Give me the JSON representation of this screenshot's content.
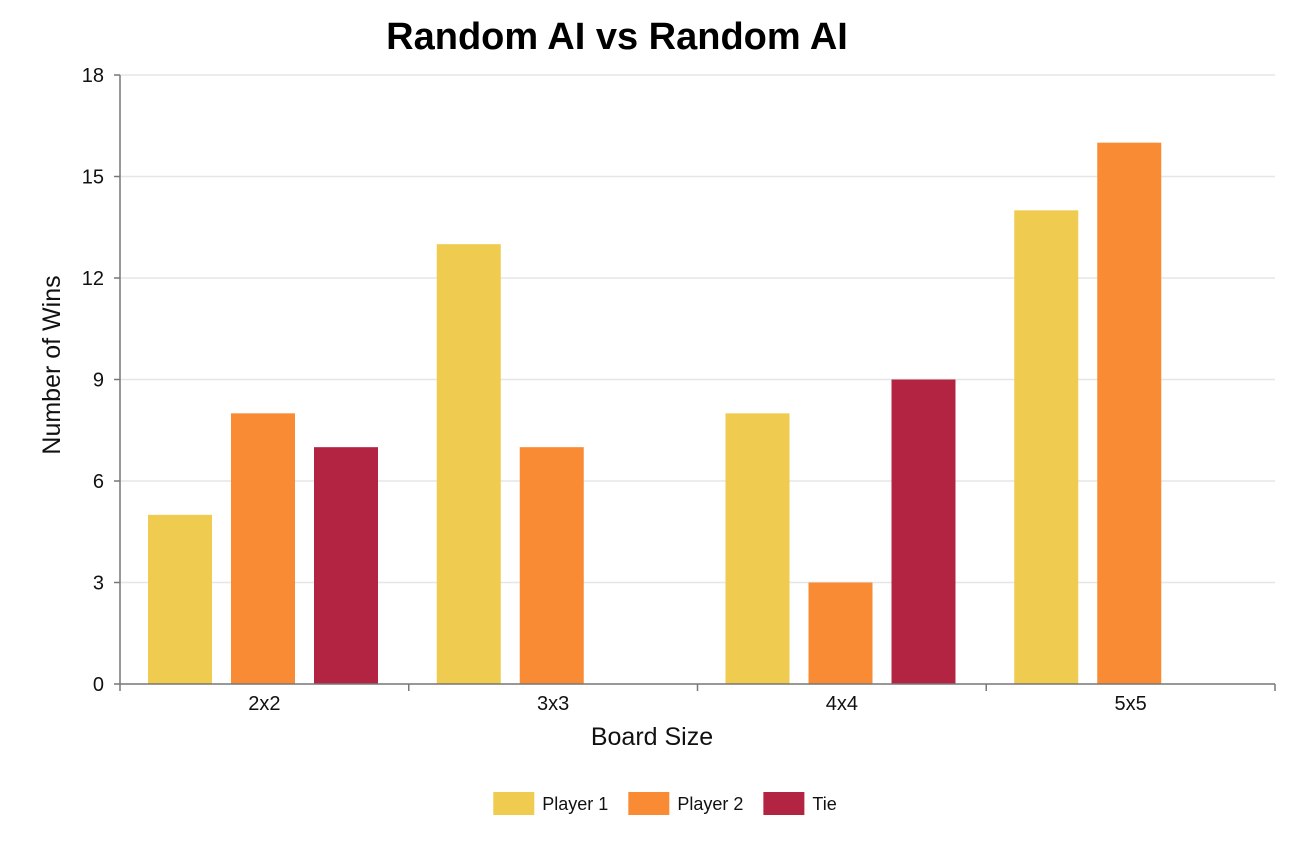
{
  "chart_data": {
    "type": "bar",
    "title": "Random AI vs Random AI",
    "xlabel": "Board Size",
    "ylabel": "Number of Wins",
    "categories": [
      "2x2",
      "3x3",
      "4x4",
      "5x5"
    ],
    "series": [
      {
        "name": "Player 1",
        "color": "#EFCB4F",
        "values": [
          5,
          13,
          8,
          14
        ]
      },
      {
        "name": "Player 2",
        "color": "#F98B34",
        "values": [
          8,
          7,
          3,
          16
        ]
      },
      {
        "name": "Tie",
        "color": "#B32442",
        "values": [
          7,
          0,
          9,
          0
        ]
      }
    ],
    "ylim": [
      0,
      18
    ],
    "yticks": [
      0,
      3,
      6,
      9,
      12,
      15,
      18
    ],
    "grid": true,
    "legend_position": "bottom-center"
  }
}
